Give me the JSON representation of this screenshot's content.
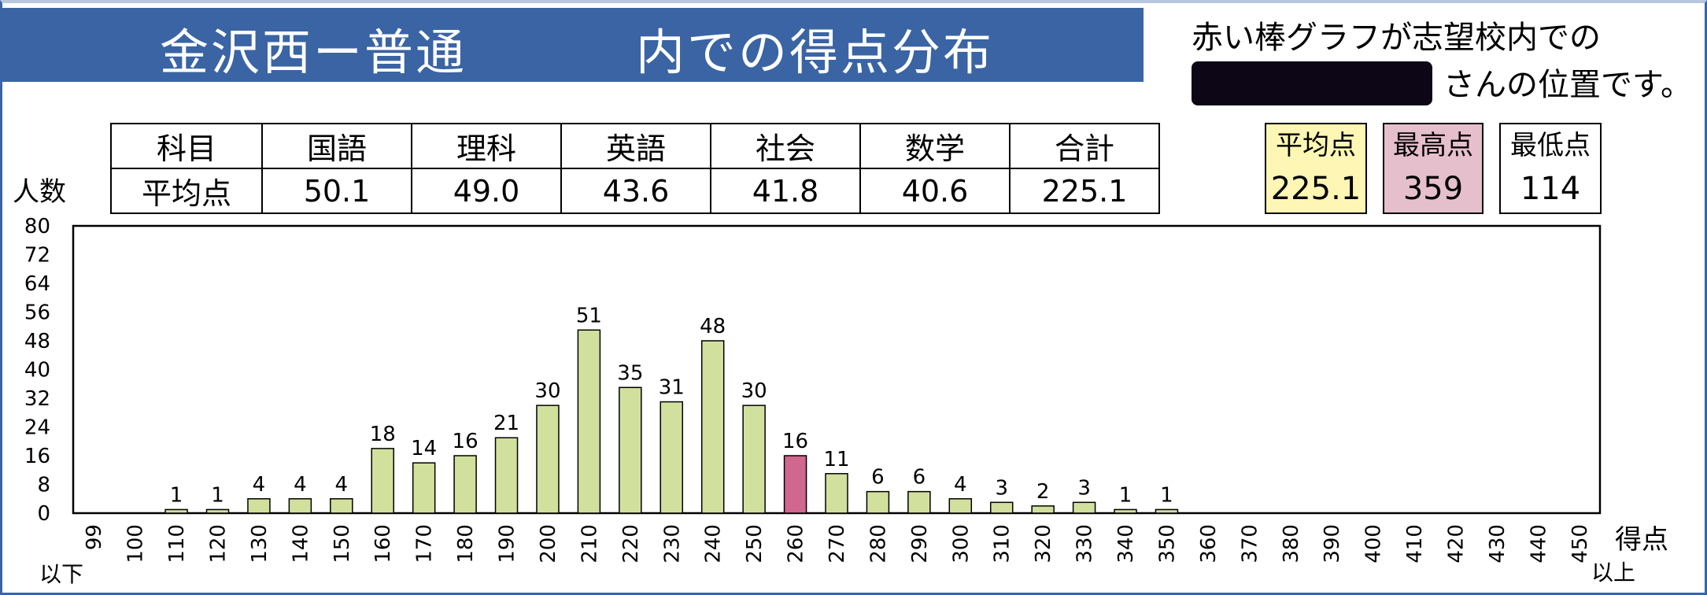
{
  "header": {
    "title_main": "金沢西ー普通",
    "title_sub": "内での得点分布",
    "note_line1": "赤い棒グラフが志望校内での",
    "note_line2": "さんの位置です。"
  },
  "subjects_table": {
    "row_header_1": "科目",
    "row_header_2": "平均点",
    "columns": [
      {
        "subject": "国語",
        "average": "50.1"
      },
      {
        "subject": "理科",
        "average": "49.0"
      },
      {
        "subject": "英語",
        "average": "43.6"
      },
      {
        "subject": "社会",
        "average": "41.8"
      },
      {
        "subject": "数学",
        "average": "40.6"
      },
      {
        "subject": "合計",
        "average": "225.1"
      }
    ]
  },
  "summary": {
    "average_label": "平均点",
    "average_value": "225.1",
    "max_label": "最高点",
    "max_value": "359",
    "min_label": "最低点",
    "min_value": "114"
  },
  "colors": {
    "banner": "#3a64a4",
    "bar_fill": "#d2e09e",
    "highlight_fill": "#d0678f",
    "average_box": "#fdf6b4",
    "max_box": "#e6bfcd"
  },
  "chart_data": {
    "type": "bar",
    "ylabel": "人数",
    "xlabel": "得点",
    "below_label": "以下",
    "above_label": "以上",
    "ylim": [
      0,
      80
    ],
    "yticks": [
      0,
      8,
      16,
      24,
      32,
      40,
      48,
      56,
      64,
      72,
      80
    ],
    "grid": false,
    "categories": [
      "99",
      "100",
      "110",
      "120",
      "130",
      "140",
      "150",
      "160",
      "170",
      "180",
      "190",
      "200",
      "210",
      "220",
      "230",
      "240",
      "250",
      "260",
      "270",
      "280",
      "290",
      "300",
      "310",
      "320",
      "330",
      "340",
      "350",
      "360",
      "370",
      "380",
      "390",
      "400",
      "410",
      "420",
      "430",
      "440",
      "450"
    ],
    "values": [
      0,
      0,
      1,
      1,
      4,
      4,
      4,
      18,
      14,
      16,
      21,
      30,
      51,
      35,
      31,
      48,
      30,
      16,
      11,
      6,
      6,
      4,
      3,
      2,
      3,
      1,
      1,
      0,
      0,
      0,
      0,
      0,
      0,
      0,
      0,
      0,
      0
    ],
    "highlight_category": "260"
  }
}
